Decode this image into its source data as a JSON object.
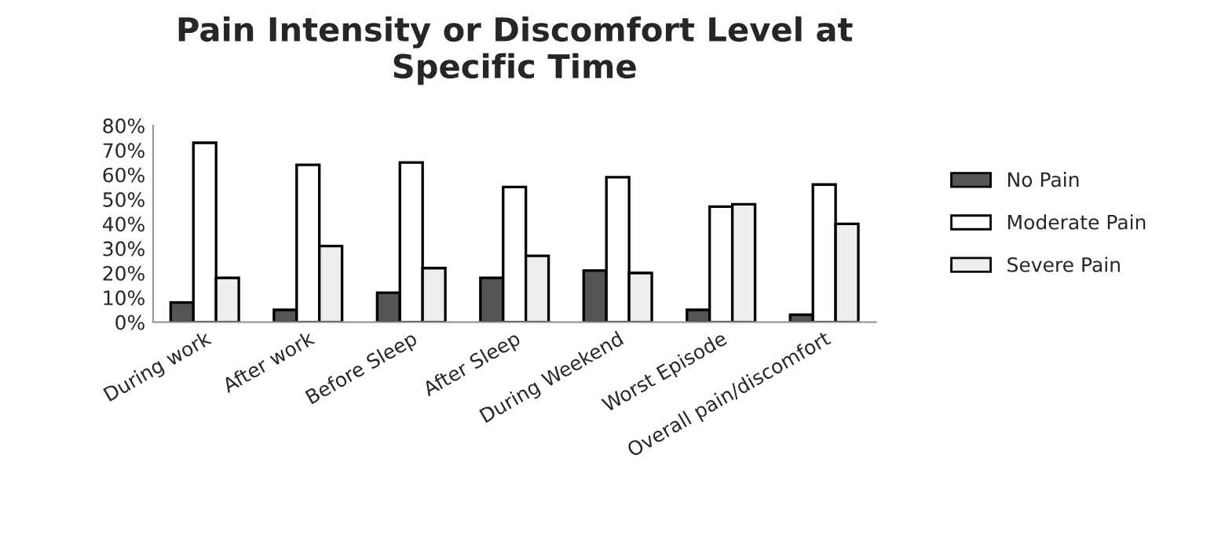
{
  "chart_data": {
    "type": "bar",
    "title": "Pain Intensity or Discomfort Level at\nSpecific Time",
    "categories": [
      "During work",
      "After work",
      "Before Sleep",
      "After Sleep",
      "During Weekend",
      "Worst Episode",
      "Overall pain/discomfort"
    ],
    "series": [
      {
        "name": "No Pain",
        "color": "#555555",
        "values": [
          8,
          5,
          12,
          18,
          21,
          5,
          3
        ]
      },
      {
        "name": "Moderate Pain",
        "color": "#ffffff",
        "values": [
          73,
          64,
          65,
          55,
          59,
          47,
          56
        ]
      },
      {
        "name": "Severe Pain",
        "color": "#eeeeee",
        "values": [
          18,
          31,
          22,
          27,
          20,
          48,
          40
        ]
      }
    ],
    "ylim": [
      0,
      80
    ],
    "yticks": [
      {
        "value": 0,
        "label": "0%"
      },
      {
        "value": 10,
        "label": "10%"
      },
      {
        "value": 20,
        "label": "20%"
      },
      {
        "value": 30,
        "label": "30%"
      },
      {
        "value": 40,
        "label": "40%"
      },
      {
        "value": 50,
        "label": "50%"
      },
      {
        "value": 60,
        "label": "60%"
      },
      {
        "value": 70,
        "label": "70%"
      },
      {
        "value": 80,
        "label": "80%"
      }
    ],
    "grid": false,
    "legend": "right"
  }
}
